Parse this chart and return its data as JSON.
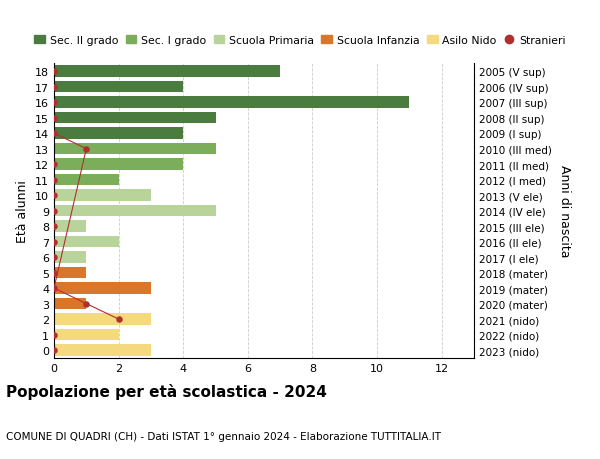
{
  "ages": [
    18,
    17,
    16,
    15,
    14,
    13,
    12,
    11,
    10,
    9,
    8,
    7,
    6,
    5,
    4,
    3,
    2,
    1,
    0
  ],
  "right_labels": [
    "2005 (V sup)",
    "2006 (IV sup)",
    "2007 (III sup)",
    "2008 (II sup)",
    "2009 (I sup)",
    "2010 (III med)",
    "2011 (II med)",
    "2012 (I med)",
    "2013 (V ele)",
    "2014 (IV ele)",
    "2015 (III ele)",
    "2016 (II ele)",
    "2017 (I ele)",
    "2018 (mater)",
    "2019 (mater)",
    "2020 (mater)",
    "2021 (nido)",
    "2022 (nido)",
    "2023 (nido)"
  ],
  "bar_values": [
    7,
    4,
    11,
    5,
    4,
    5,
    4,
    2,
    3,
    5,
    1,
    2,
    1,
    1,
    3,
    1,
    3,
    2,
    3
  ],
  "bar_colors": [
    "#4a7c3f",
    "#4a7c3f",
    "#4a7c3f",
    "#4a7c3f",
    "#4a7c3f",
    "#7cad5a",
    "#7cad5a",
    "#7cad5a",
    "#b8d49a",
    "#b8d49a",
    "#b8d49a",
    "#b8d49a",
    "#b8d49a",
    "#d9762a",
    "#d9762a",
    "#d9762a",
    "#f5d97e",
    "#f5d97e",
    "#f5d97e"
  ],
  "stranieri_line_ages": [
    14,
    13,
    4,
    3,
    2
  ],
  "stranieri_line_x": [
    0,
    1,
    0,
    1,
    2
  ],
  "stranieri_dot_ages": [
    18,
    17,
    16,
    15,
    14,
    13,
    12,
    11,
    10,
    9,
    8,
    7,
    6,
    5,
    4,
    3,
    2,
    1,
    0
  ],
  "stranieri_dot_x": [
    0,
    0,
    0,
    0,
    0,
    1,
    0,
    0,
    0,
    0,
    0,
    0,
    0,
    0,
    0,
    1,
    2,
    0,
    0
  ],
  "title_main": "Popolazione per età scolastica - 2024",
  "title_sub": "COMUNE DI QUADRI (CH) - Dati ISTAT 1° gennaio 2024 - Elaborazione TUTTITALIA.IT",
  "ylabel": "Età alunni",
  "ylabel_right": "Anni di nascita",
  "xlim": [
    0,
    13
  ],
  "xticks": [
    0,
    2,
    4,
    6,
    8,
    10,
    12
  ],
  "color_sec2": "#4a7c3f",
  "color_sec1": "#7cad5a",
  "color_prim": "#b8d49a",
  "color_infanzia": "#d9762a",
  "color_nido": "#f5d97e",
  "color_stranieri": "#b03030",
  "legend_labels": [
    "Sec. II grado",
    "Sec. I grado",
    "Scuola Primaria",
    "Scuola Infanzia",
    "Asilo Nido",
    "Stranieri"
  ],
  "bg_color": "#ffffff",
  "grid_color": "#cccccc"
}
